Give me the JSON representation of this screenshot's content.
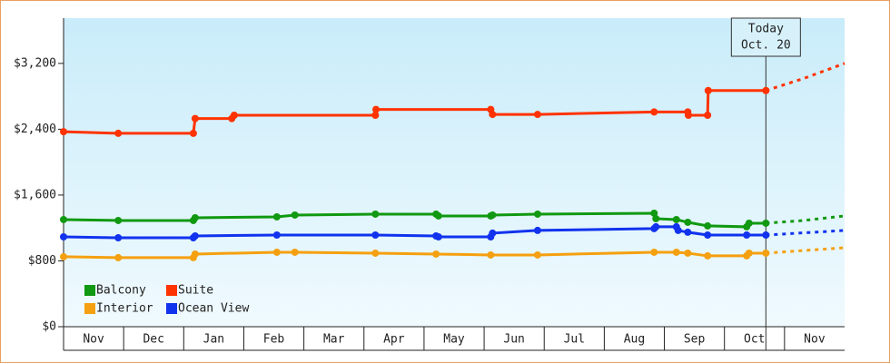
{
  "chart_data": {
    "type": "line",
    "categories": [
      "Nov",
      "Dec",
      "Jan",
      "Feb",
      "Mar",
      "Apr",
      "May",
      "Jun",
      "Jul",
      "Aug",
      "Sep",
      "Oct",
      "Nov"
    ],
    "xlim": [
      0,
      13
    ],
    "ylim": [
      0,
      3750
    ],
    "yticks": [
      {
        "value": 0,
        "label": "$0"
      },
      {
        "value": 800,
        "label": "$800"
      },
      {
        "value": 1600,
        "label": "$1,600"
      },
      {
        "value": 2400,
        "label": "$2,400"
      },
      {
        "value": 3200,
        "label": "$3,200"
      }
    ],
    "legend": "bottom-left",
    "today": {
      "x": 11.69,
      "label": "Today",
      "date": "Oct. 20"
    },
    "series": [
      {
        "name": "Balcony",
        "color": "#119911",
        "x": [
          0,
          0.91,
          2.16,
          2.19,
          3.55,
          3.85,
          5.19,
          6.2,
          6.24,
          7.11,
          7.14,
          7.89,
          9.83,
          9.86,
          10.2,
          10.39,
          10.72,
          11.37,
          11.41,
          11.69
        ],
        "values": [
          1302,
          1291,
          1291,
          1324,
          1335,
          1357,
          1368,
          1368,
          1346,
          1346,
          1357,
          1368,
          1379,
          1313,
          1302,
          1269,
          1225,
          1214,
          1258,
          1258
        ],
        "forecast": {
          "x": [
            11.69,
            12.3,
            13
          ],
          "values": [
            1258,
            1290,
            1346
          ]
        }
      },
      {
        "name": "Suite",
        "color": "#ff3300",
        "x": [
          0,
          0.91,
          2.16,
          2.19,
          2.8,
          2.84,
          5.19,
          5.2,
          7.11,
          7.14,
          7.89,
          9.83,
          10.39,
          10.4,
          10.72,
          10.73,
          11.69
        ],
        "values": [
          2370,
          2350,
          2350,
          2530,
          2530,
          2570,
          2570,
          2640,
          2640,
          2580,
          2580,
          2610,
          2610,
          2570,
          2570,
          2870,
          2870
        ],
        "forecast": {
          "x": [
            11.69,
            12.3,
            13
          ],
          "values": [
            2870,
            3012,
            3200
          ]
        }
      },
      {
        "name": "Interior",
        "color": "#f5a010",
        "x": [
          0,
          0.91,
          2.16,
          2.19,
          3.55,
          3.85,
          5.19,
          6.2,
          7.11,
          7.89,
          9.83,
          10.2,
          10.39,
          10.72,
          11.37,
          11.41,
          11.69
        ],
        "values": [
          850,
          839,
          839,
          883,
          905,
          905,
          894,
          883,
          872,
          872,
          905,
          905,
          894,
          861,
          861,
          894,
          894
        ],
        "forecast": {
          "x": [
            11.69,
            12.3,
            13
          ],
          "values": [
            894,
            925,
            960
          ]
        }
      },
      {
        "name": "Ocean View",
        "color": "#1133ee",
        "x": [
          0,
          0.91,
          2.16,
          2.19,
          3.55,
          5.19,
          6.2,
          6.24,
          7.11,
          7.14,
          7.89,
          9.83,
          9.86,
          10.2,
          10.23,
          10.39,
          10.72,
          11.37,
          11.69
        ],
        "values": [
          1092,
          1081,
          1081,
          1103,
          1114,
          1114,
          1103,
          1092,
          1092,
          1137,
          1170,
          1192,
          1214,
          1214,
          1170,
          1148,
          1114,
          1114,
          1114
        ],
        "forecast": {
          "x": [
            11.69,
            12.3,
            13
          ],
          "values": [
            1114,
            1140,
            1170
          ]
        }
      }
    ]
  }
}
